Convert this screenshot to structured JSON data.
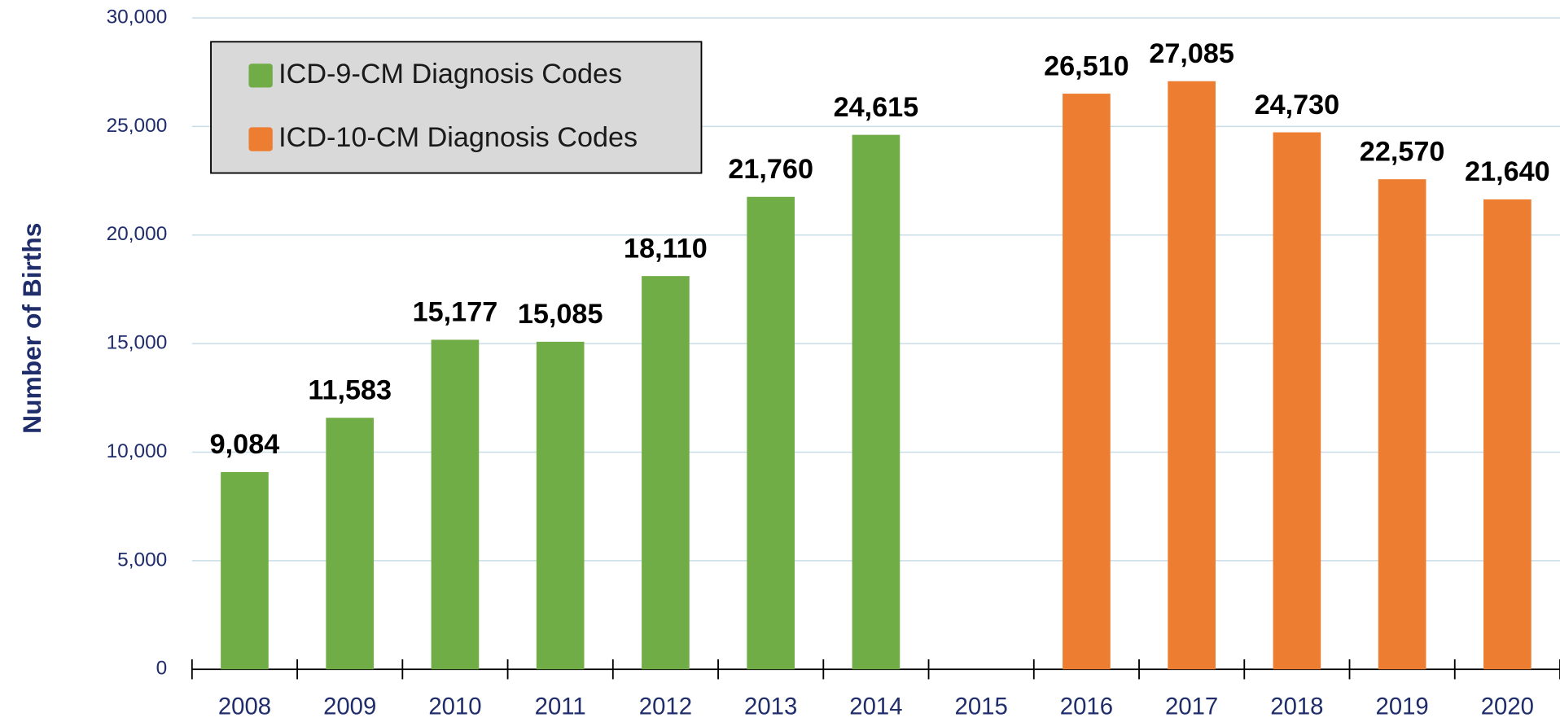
{
  "chart_data": {
    "type": "bar",
    "y_label": "Number of Births",
    "categories": [
      "2008",
      "2009",
      "2010",
      "2011",
      "2012",
      "2013",
      "2014",
      "2015",
      "2016",
      "2017",
      "2018",
      "2019",
      "2020"
    ],
    "series": [
      {
        "name": "ICD-9-CM Diagnosis Codes",
        "color": "#70ad47",
        "values": [
          9084,
          11583,
          15177,
          15085,
          18110,
          21760,
          24615,
          null,
          null,
          null,
          null,
          null,
          null
        ],
        "value_labels": [
          "9,084",
          "11,583",
          "15,177",
          "15,085",
          "18,110",
          "21,760",
          "24,615",
          null,
          null,
          null,
          null,
          null,
          null
        ]
      },
      {
        "name": "ICD-10-CM Diagnosis Codes",
        "color": "#ed7d31",
        "values": [
          null,
          null,
          null,
          null,
          null,
          null,
          null,
          null,
          26510,
          27085,
          24730,
          22570,
          21640
        ],
        "value_labels": [
          null,
          null,
          null,
          null,
          null,
          null,
          null,
          null,
          "26,510",
          "27,085",
          "24,730",
          "22,570",
          "21,640"
        ]
      }
    ],
    "ylim": [
      0,
      30000
    ],
    "yticks": [
      0,
      {
        "value": 5000,
        "label": "5,000"
      },
      {
        "value": 10000,
        "label": "10,000"
      },
      {
        "value": 15000,
        "label": "15,000"
      },
      {
        "value": 20000,
        "label": "20,000"
      },
      {
        "value": 25000,
        "label": "25,000"
      },
      {
        "value": 30000,
        "label": "30,000"
      }
    ],
    "grid": true,
    "legend": "upper left"
  }
}
